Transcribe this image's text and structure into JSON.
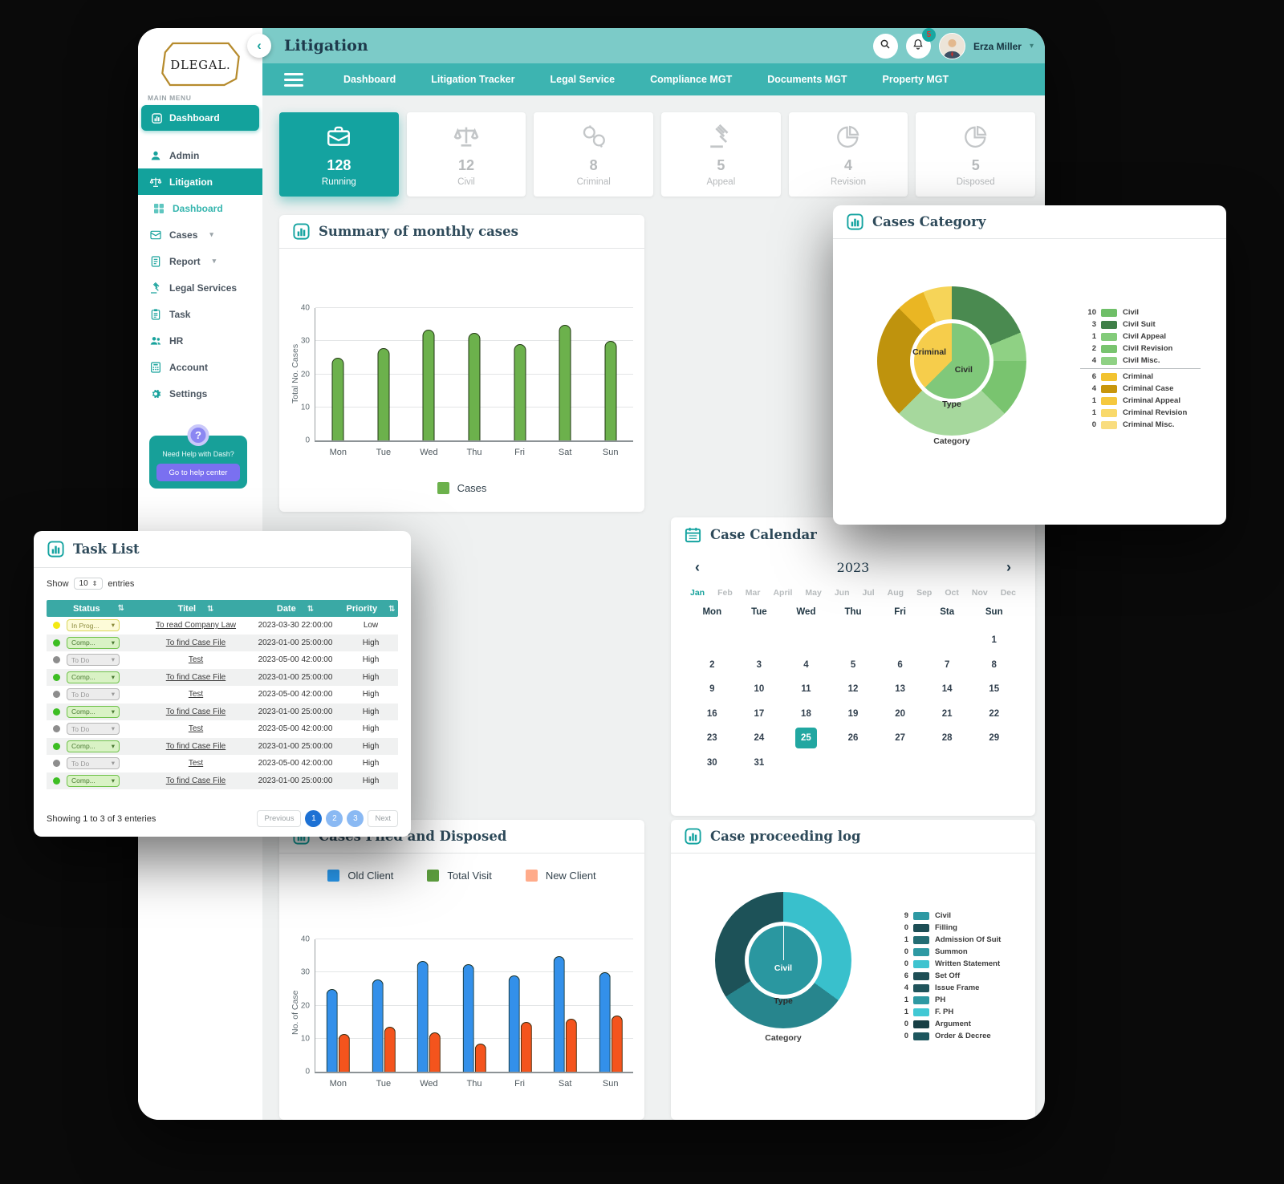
{
  "header": {
    "title": "Litigation",
    "back_glyph": "‹",
    "notification_count": "5",
    "user_name": "Erza Miller"
  },
  "nav": {
    "items": [
      "Dashboard",
      "Litigation Tracker",
      "Legal Service",
      "Compliance MGT",
      "Documents MGT",
      "Property MGT"
    ]
  },
  "sidebar": {
    "logo_text": "DLEGAL.",
    "section_label": "MAIN MENU",
    "primary": {
      "label": "Dashboard",
      "icon": "bar-chart-icon"
    },
    "items": [
      {
        "label": "Admin",
        "icon": "admin-icon",
        "style": "normal"
      },
      {
        "label": "Litigation",
        "icon": "scales-icon",
        "style": "band"
      },
      {
        "label": "Dashboard",
        "icon": "grid-icon",
        "style": "sub"
      },
      {
        "label": "Cases",
        "icon": "cases-icon",
        "style": "normal",
        "caret": true
      },
      {
        "label": "Report",
        "icon": "report-icon",
        "style": "normal",
        "caret": true
      },
      {
        "label": "Legal Services",
        "icon": "gavel-icon",
        "style": "normal"
      },
      {
        "label": "Task",
        "icon": "task-icon",
        "style": "normal"
      },
      {
        "label": "HR",
        "icon": "hr-icon",
        "style": "normal"
      },
      {
        "label": "Account",
        "icon": "account-icon",
        "style": "normal"
      },
      {
        "label": "Settings",
        "icon": "gear-icon",
        "style": "normal"
      }
    ],
    "help": {
      "question_glyph": "?",
      "text": "Need Help with Dash?",
      "button": "Go to help center"
    }
  },
  "stats": [
    {
      "value": "128",
      "label": "Running",
      "icon": "briefcase-icon",
      "active": true
    },
    {
      "value": "12",
      "label": "Civil",
      "icon": "scales-icon",
      "active": false
    },
    {
      "value": "8",
      "label": "Criminal",
      "icon": "handcuffs-icon",
      "active": false
    },
    {
      "value": "5",
      "label": "Appeal",
      "icon": "gavel-icon",
      "active": false
    },
    {
      "value": "4",
      "label": "Revision",
      "icon": "pie-icon",
      "active": false
    },
    {
      "value": "5",
      "label": "Disposed",
      "icon": "pie-icon",
      "active": false
    }
  ],
  "panels": {
    "summary": {
      "title": "Summary of monthly cases"
    },
    "category": {
      "title": "Cases Category"
    },
    "tasklist": {
      "title": "Task List"
    },
    "calendar": {
      "title": "Case Calendar"
    },
    "clients": {
      "title": "Cases Filed and Disposed"
    },
    "proceeding": {
      "title": "Case proceeding log"
    }
  },
  "tasklist": {
    "show_label": "Show",
    "show_value": "10",
    "entries_label": "entries",
    "columns": [
      "Status",
      "Titel",
      "Date",
      "Priority"
    ],
    "rows": [
      {
        "dot": "#f3e913",
        "status": "In Prog...",
        "status_style": "inprog",
        "title": "To read Company Law",
        "date": "2023-03-30 22:00:00",
        "priority": "Low"
      },
      {
        "dot": "#3dbe23",
        "status": "Comp...",
        "status_style": "comp",
        "title": "To find Case File",
        "date": "2023-01-00 25:00:00",
        "priority": "High"
      },
      {
        "dot": "#8d8d8d",
        "status": "To Do",
        "status_style": "todo",
        "title": "Test",
        "date": "2023-05-00 42:00:00",
        "priority": "High"
      },
      {
        "dot": "#3dbe23",
        "status": "Comp...",
        "status_style": "comp",
        "title": "To find Case File",
        "date": "2023-01-00 25:00:00",
        "priority": "High"
      },
      {
        "dot": "#8d8d8d",
        "status": "To Do",
        "status_style": "todo",
        "title": "Test",
        "date": "2023-05-00 42:00:00",
        "priority": "High"
      },
      {
        "dot": "#3dbe23",
        "status": "Comp...",
        "status_style": "comp",
        "title": "To find Case File",
        "date": "2023-01-00 25:00:00",
        "priority": "High"
      },
      {
        "dot": "#8d8d8d",
        "status": "To Do",
        "status_style": "todo",
        "title": "Test",
        "date": "2023-05-00 42:00:00",
        "priority": "High"
      },
      {
        "dot": "#3dbe23",
        "status": "Comp...",
        "status_style": "comp",
        "title": "To find Case File",
        "date": "2023-01-00 25:00:00",
        "priority": "High"
      },
      {
        "dot": "#8d8d8d",
        "status": "To Do",
        "status_style": "todo",
        "title": "Test",
        "date": "2023-05-00 42:00:00",
        "priority": "High"
      },
      {
        "dot": "#3dbe23",
        "status": "Comp...",
        "status_style": "comp",
        "title": "To find Case File",
        "date": "2023-01-00 25:00:00",
        "priority": "High"
      }
    ],
    "footer": "Showing 1 to 3 of 3 enteries",
    "pagination": {
      "prev": "Previous",
      "pages": [
        "1",
        "2",
        "3"
      ],
      "active": "1",
      "next": "Next"
    }
  },
  "calendar": {
    "year": "2023",
    "months": [
      "Jan",
      "Feb",
      "Mar",
      "April",
      "May",
      "Jun",
      "Jul",
      "Aug",
      "Sep",
      "Oct",
      "Nov",
      "Dec"
    ],
    "active_month": "Jan",
    "day_headers": [
      "Mon",
      "Tue",
      "Wed",
      "Thu",
      "Fri",
      "Sta",
      "Sun"
    ],
    "weeks": [
      [
        "",
        "",
        "",
        "",
        "",
        "",
        "1"
      ],
      [
        "2",
        "3",
        "4",
        "5",
        "6",
        "7",
        "8"
      ],
      [
        "9",
        "10",
        "11",
        "12",
        "13",
        "14",
        "15"
      ],
      [
        "16",
        "17",
        "18",
        "19",
        "20",
        "21",
        "22"
      ],
      [
        "23",
        "24",
        "25",
        "26",
        "27",
        "28",
        "29"
      ],
      [
        "30",
        "31",
        "",
        "",
        "",
        "",
        ""
      ]
    ],
    "selected_date": "25"
  },
  "chart_data": [
    {
      "id": "summary_cases",
      "type": "bar",
      "title": "Summary of monthly cases",
      "categories": [
        "Mon",
        "Tue",
        "Wed",
        "Thu",
        "Fri",
        "Sat",
        "Sun"
      ],
      "series": [
        {
          "name": "Cases",
          "color": "#6cb14c",
          "values": [
            25,
            28,
            33.5,
            32.5,
            29,
            35,
            30
          ]
        }
      ],
      "ylabel": "Total No. Cases",
      "ylim": [
        0,
        40
      ],
      "yticks": [
        0,
        10,
        20,
        30,
        40
      ],
      "grid": true,
      "legend_position": "bottom"
    },
    {
      "id": "cases_category",
      "type": "donut",
      "title": "Cases Category",
      "inner": [
        {
          "label": "Civil",
          "value": 10,
          "color": "#80c87a"
        },
        {
          "label": "Criminal",
          "value": 6,
          "color": "#f6cd4b"
        }
      ],
      "outer": [
        {
          "label": "Civil Suit",
          "value": 3,
          "color": "#4a8a50"
        },
        {
          "label": "Civil Appeal",
          "value": 1,
          "color": "#8fd184"
        },
        {
          "label": "Civil Revision",
          "value": 2,
          "color": "#79c46f"
        },
        {
          "label": "Civil Misc.",
          "value": 4,
          "color": "#a6d89d"
        },
        {
          "label": "Criminal Case",
          "value": 4,
          "color": "#bf930d"
        },
        {
          "label": "Criminal Appeal",
          "value": 1,
          "color": "#eab623"
        },
        {
          "label": "Criminal Revision",
          "value": 1,
          "color": "#f6d458"
        },
        {
          "label": "Criminal Misc.",
          "value": 0,
          "color": "#f9e27e"
        }
      ],
      "legend": [
        {
          "value": "10",
          "label": "Civil",
          "color": "#6fbf68"
        },
        {
          "value": "3",
          "label": "Civil Suit",
          "color": "#3f7f48"
        },
        {
          "value": "1",
          "label": "Civil Appeal",
          "color": "#83cb7a"
        },
        {
          "value": "2",
          "label": "Civil Revision",
          "color": "#79c46f"
        },
        {
          "value": "4",
          "label": "Civil Misc.",
          "color": "#8fd184"
        },
        {
          "value": "6",
          "label": "Criminal",
          "color": "#f2c330"
        },
        {
          "value": "4",
          "label": "Criminal Case",
          "color": "#c8960c"
        },
        {
          "value": "1",
          "label": "Criminal Appeal",
          "color": "#f5c83e"
        },
        {
          "value": "1",
          "label": "Criminal Revision",
          "color": "#f9d96a"
        },
        {
          "value": "0",
          "label": "Criminal Misc.",
          "color": "#f9dd7f"
        }
      ],
      "legend_divider_after": 5,
      "center_labels": {
        "left": "Criminal",
        "right": "Civil",
        "axis": "Type",
        "caption": "Category"
      }
    },
    {
      "id": "filed_disposed",
      "type": "bar",
      "title": "Cases Filed and Disposed",
      "categories": [
        "Mon",
        "Tue",
        "Wed",
        "Thu",
        "Fri",
        "Sat",
        "Sun"
      ],
      "legend": [
        {
          "name": "Old Client",
          "color": "#2a9df4"
        },
        {
          "name": "Total Visit",
          "color": "#5d9e3e"
        },
        {
          "name": "New Client",
          "color": "#ffab8a"
        }
      ],
      "series": [
        {
          "name": "Old Client",
          "color": "#3390ea",
          "values": [
            25,
            28,
            33.5,
            32.5,
            29,
            35,
            30
          ]
        },
        {
          "name": "New Client",
          "color": "#f4541d",
          "values": [
            11.5,
            13.5,
            12,
            8.5,
            15,
            16,
            17
          ]
        }
      ],
      "ylabel": "No. of Case",
      "ylim": [
        0,
        40
      ],
      "yticks": [
        0,
        10,
        20,
        30,
        40
      ],
      "grid": true,
      "legend_position": "top"
    },
    {
      "id": "proceeding_log",
      "type": "donut",
      "title": "Case proceeding log",
      "inner": [
        {
          "label": "Civil",
          "value": 1,
          "color": "#2a97a0"
        }
      ],
      "outer": [
        {
          "label": "segment-1",
          "value": 35,
          "color": "#39c0cc"
        },
        {
          "label": "segment-2",
          "value": 31,
          "color": "#27858d"
        },
        {
          "label": "segment-3",
          "value": 34,
          "color": "#1d5258"
        }
      ],
      "legend": [
        {
          "value": "9",
          "label": "Civil",
          "color": "#2e99a3"
        },
        {
          "value": "0",
          "label": "Filling",
          "color": "#1d4e55"
        },
        {
          "value": "1",
          "label": "Admission Of Suit",
          "color": "#236d74"
        },
        {
          "value": "0",
          "label": "Summon",
          "color": "#2e99a3"
        },
        {
          "value": "0",
          "label": "Written Statement",
          "color": "#3ec3cf"
        },
        {
          "value": "6",
          "label": "Set Off",
          "color": "#1d4e55"
        },
        {
          "value": "4",
          "label": "Issue Frame",
          "color": "#20545b"
        },
        {
          "value": "1",
          "label": "PH",
          "color": "#2e99a3"
        },
        {
          "value": "1",
          "label": "F. PH",
          "color": "#41c8d4"
        },
        {
          "value": "0",
          "label": "Argument",
          "color": "#173f45"
        },
        {
          "value": "0",
          "label": "Order & Decree",
          "color": "#1d565e"
        }
      ],
      "center_labels": {
        "center": "Civil",
        "axis": "Type",
        "caption": "Category"
      }
    }
  ]
}
